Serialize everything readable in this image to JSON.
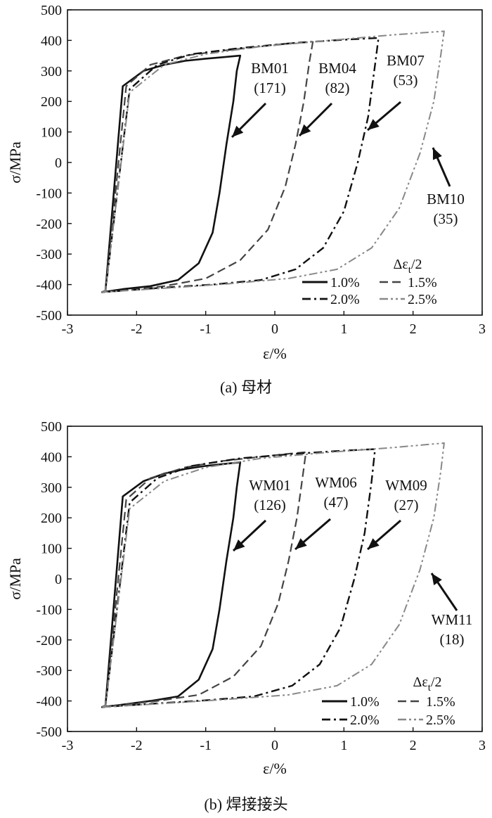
{
  "chart_data": [
    {
      "type": "line",
      "subplot": "a",
      "caption": "(a) 母材",
      "xlabel": "ε/%",
      "ylabel": "σ/MPa",
      "xlim": [
        -3,
        3
      ],
      "ylim": [
        -500,
        500
      ],
      "xticks": [
        "-3",
        "-2",
        "-1",
        "0",
        "1",
        "2",
        "3"
      ],
      "yticks": [
        "500",
        "400",
        "300",
        "200",
        "100",
        "0",
        "-100",
        "-200",
        "-300",
        "-400",
        "-500"
      ],
      "legend_title": "Δε_t/2",
      "legend_placement": "bottom-right",
      "series": [
        {
          "name": "1.0%",
          "style": "solid",
          "color": "#111111",
          "x": [
            -2.5,
            -2.45,
            -2.2,
            -1.9,
            -1.6,
            -1.3,
            -1.0,
            -0.75,
            -0.5,
            -0.55,
            -0.6,
            -0.7,
            -0.8,
            -0.9,
            -1.1,
            -1.4,
            -1.8,
            -2.2,
            -2.5
          ],
          "y": [
            -425,
            -420,
            250,
            300,
            320,
            333,
            340,
            345,
            350,
            300,
            200,
            60,
            -100,
            -230,
            -330,
            -385,
            -405,
            -415,
            -425
          ]
        },
        {
          "name": "1.5%",
          "style": "dashed",
          "color": "#444444",
          "x": [
            -2.5,
            -2.45,
            -2.15,
            -1.8,
            -1.3,
            -0.8,
            -0.2,
            0.2,
            0.55,
            0.5,
            0.42,
            0.3,
            0.15,
            -0.1,
            -0.5,
            -1.0,
            -1.6,
            -2.1,
            -2.5
          ],
          "y": [
            -425,
            -420,
            250,
            320,
            350,
            365,
            380,
            390,
            395,
            330,
            200,
            60,
            -80,
            -220,
            -320,
            -380,
            -405,
            -418,
            -425
          ]
        },
        {
          "name": "2.0%",
          "style": "dashdot",
          "color": "#111111",
          "x": [
            -2.5,
            -2.45,
            -2.1,
            -1.7,
            -1.2,
            -0.5,
            0.3,
            1.0,
            1.5,
            1.45,
            1.35,
            1.2,
            1.0,
            0.7,
            0.3,
            -0.2,
            -0.9,
            -1.6,
            -2.5
          ],
          "y": [
            -425,
            -420,
            240,
            320,
            355,
            375,
            392,
            402,
            408,
            320,
            150,
            0,
            -160,
            -280,
            -350,
            -385,
            -400,
            -410,
            -425
          ]
        },
        {
          "name": "2.5%",
          "style": "dashdotdot",
          "color": "#888888",
          "x": [
            -2.5,
            -2.45,
            -2.1,
            -1.6,
            -1.0,
            -0.2,
            0.8,
            1.7,
            2.45,
            2.4,
            2.3,
            2.1,
            1.8,
            1.4,
            0.9,
            0.2,
            -0.7,
            -1.6,
            -2.5
          ],
          "y": [
            -425,
            -420,
            230,
            320,
            355,
            380,
            400,
            418,
            430,
            350,
            200,
            30,
            -150,
            -280,
            -350,
            -380,
            -398,
            -412,
            -425
          ]
        }
      ],
      "annotations": [
        {
          "label": "BM01",
          "cycles": "(171)"
        },
        {
          "label": "BM04",
          "cycles": "(82)"
        },
        {
          "label": "BM07",
          "cycles": "(53)"
        },
        {
          "label": "BM10",
          "cycles": "(35)"
        }
      ]
    },
    {
      "type": "line",
      "subplot": "b",
      "caption": "(b) 焊接接头",
      "xlabel": "ε/%",
      "ylabel": "σ/MPa",
      "xlim": [
        -3,
        3
      ],
      "ylim": [
        -500,
        500
      ],
      "xticks": [
        "-3",
        "-2",
        "-1",
        "0",
        "1",
        "2",
        "3"
      ],
      "yticks": [
        "500",
        "400",
        "300",
        "200",
        "100",
        "0",
        "-100",
        "-200",
        "-300",
        "-400",
        "-500"
      ],
      "legend_title": "Δε_t/2",
      "legend_placement": "bottom-right",
      "series": [
        {
          "name": "1.0%",
          "style": "solid",
          "color": "#111111",
          "x": [
            -2.5,
            -2.45,
            -2.2,
            -1.9,
            -1.6,
            -1.3,
            -1.0,
            -0.75,
            -0.5,
            -0.55,
            -0.6,
            -0.7,
            -0.8,
            -0.9,
            -1.1,
            -1.4,
            -1.8,
            -2.2,
            -2.5
          ],
          "y": [
            -420,
            -415,
            270,
            320,
            345,
            360,
            370,
            376,
            382,
            300,
            200,
            60,
            -100,
            -230,
            -330,
            -385,
            -400,
            -412,
            -420
          ]
        },
        {
          "name": "1.5%",
          "style": "dashed",
          "color": "#444444",
          "x": [
            -2.5,
            -2.45,
            -2.15,
            -1.8,
            -1.3,
            -0.8,
            -0.2,
            0.2,
            0.45,
            0.4,
            0.32,
            0.2,
            0.05,
            -0.2,
            -0.6,
            -1.1,
            -1.7,
            -2.2,
            -2.5
          ],
          "y": [
            -420,
            -415,
            260,
            330,
            365,
            385,
            400,
            410,
            415,
            330,
            200,
            60,
            -80,
            -220,
            -320,
            -380,
            -400,
            -412,
            -420
          ]
        },
        {
          "name": "2.0%",
          "style": "dashdot",
          "color": "#111111",
          "x": [
            -2.5,
            -2.45,
            -2.1,
            -1.7,
            -1.2,
            -0.5,
            0.3,
            1.0,
            1.45,
            1.4,
            1.3,
            1.15,
            0.95,
            0.65,
            0.25,
            -0.3,
            -1.0,
            -1.7,
            -2.5
          ],
          "y": [
            -420,
            -415,
            250,
            330,
            370,
            395,
            410,
            420,
            425,
            320,
            150,
            0,
            -160,
            -280,
            -350,
            -385,
            -398,
            -408,
            -420
          ]
        },
        {
          "name": "2.5%",
          "style": "dashdotdot",
          "color": "#888888",
          "x": [
            -2.5,
            -2.45,
            -2.1,
            -1.6,
            -1.0,
            -0.2,
            0.8,
            1.7,
            2.45,
            2.4,
            2.3,
            2.1,
            1.8,
            1.4,
            0.9,
            0.2,
            -0.7,
            -1.6,
            -2.5
          ],
          "y": [
            -420,
            -415,
            230,
            320,
            365,
            395,
            415,
            430,
            445,
            350,
            200,
            30,
            -150,
            -280,
            -350,
            -380,
            -395,
            -408,
            -420
          ]
        }
      ],
      "annotations": [
        {
          "label": "WM01",
          "cycles": "(126)"
        },
        {
          "label": "WM06",
          "cycles": "(47)"
        },
        {
          "label": "WM09",
          "cycles": "(27)"
        },
        {
          "label": "WM11",
          "cycles": "(18)"
        }
      ]
    }
  ]
}
